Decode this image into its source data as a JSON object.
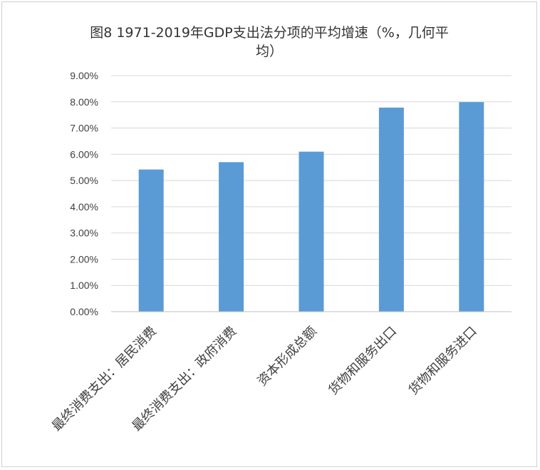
{
  "chart_data": {
    "type": "bar",
    "title_line1": "图8  1971-2019年GDP支出法分项的平均增速（%，几何平",
    "title_line2": "均）",
    "categories": [
      "最终消费支出：居民消费",
      "最终消费支出：政府消费",
      "资本形成总额",
      "货物和服务出口",
      "货物和服务进口"
    ],
    "series": [
      {
        "values": [
          5.42,
          5.7,
          6.1,
          7.78,
          7.99
        ]
      }
    ],
    "ylim": [
      0,
      9
    ],
    "y_ticks": [
      "0.00%",
      "1.00%",
      "2.00%",
      "3.00%",
      "4.00%",
      "5.00%",
      "6.00%",
      "7.00%",
      "8.00%",
      "9.00%"
    ],
    "bar_color": "#5b9bd5",
    "grid": true,
    "legend": "none"
  }
}
